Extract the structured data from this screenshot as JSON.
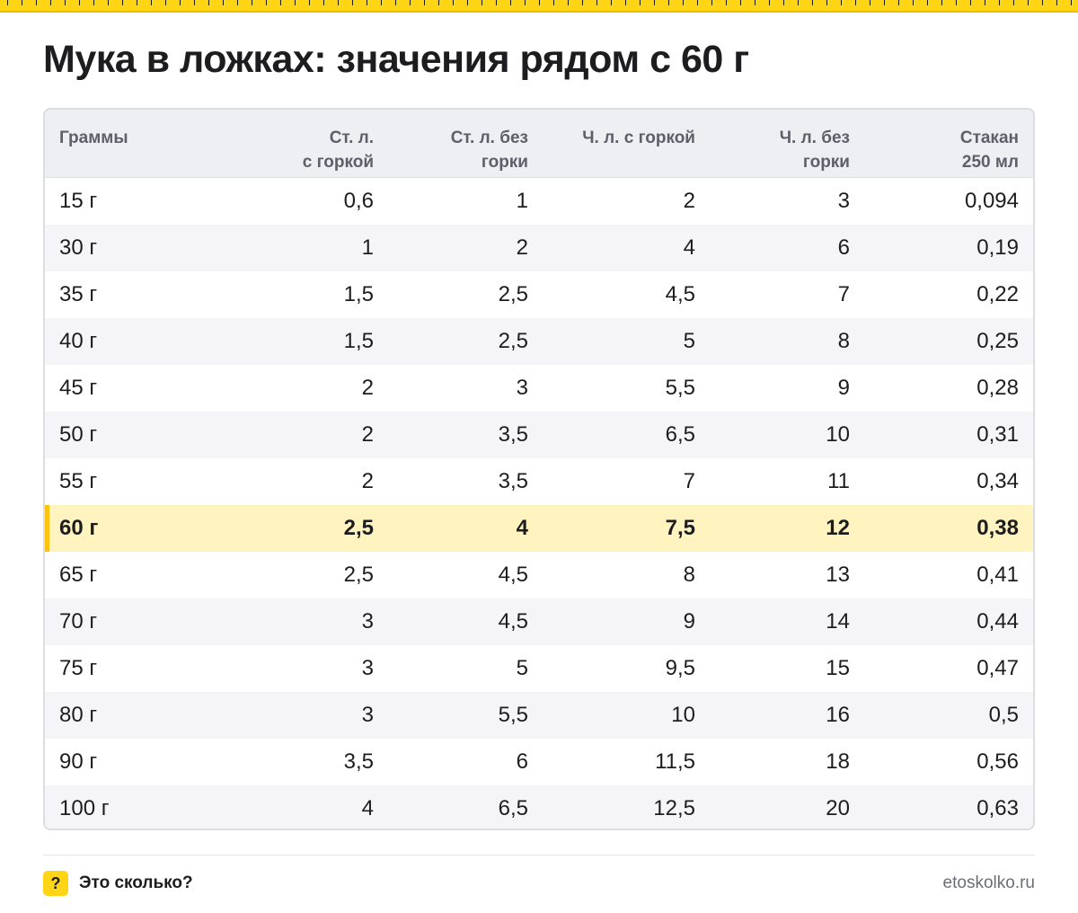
{
  "title": "Мука в ложках: значения рядом с 60 г",
  "table": {
    "headers": [
      "Граммы",
      "Ст. л.\nс горкой",
      "Ст. л. без\nгорки",
      "Ч. л. с горкой",
      "Ч. л. без\nгорки",
      "Стакан\n250 мл"
    ],
    "rows": [
      [
        "15 г",
        "0,6",
        "1",
        "2",
        "3",
        "0,094"
      ],
      [
        "30 г",
        "1",
        "2",
        "4",
        "6",
        "0,19"
      ],
      [
        "35 г",
        "1,5",
        "2,5",
        "4,5",
        "7",
        "0,22"
      ],
      [
        "40 г",
        "1,5",
        "2,5",
        "5",
        "8",
        "0,25"
      ],
      [
        "45 г",
        "2",
        "3",
        "5,5",
        "9",
        "0,28"
      ],
      [
        "50 г",
        "2",
        "3,5",
        "6,5",
        "10",
        "0,31"
      ],
      [
        "55 г",
        "2",
        "3,5",
        "7",
        "11",
        "0,34"
      ],
      [
        "60 г",
        "2,5",
        "4",
        "7,5",
        "12",
        "0,38"
      ],
      [
        "65 г",
        "2,5",
        "4,5",
        "8",
        "13",
        "0,41"
      ],
      [
        "70 г",
        "3",
        "4,5",
        "9",
        "14",
        "0,44"
      ],
      [
        "75 г",
        "3",
        "5",
        "9,5",
        "15",
        "0,47"
      ],
      [
        "80 г",
        "3",
        "5,5",
        "10",
        "16",
        "0,5"
      ],
      [
        "90 г",
        "3,5",
        "6",
        "11,5",
        "18",
        "0,56"
      ],
      [
        "100 г",
        "4",
        "6,5",
        "12,5",
        "20",
        "0,63"
      ]
    ],
    "highlighted_row": 7
  },
  "footer": {
    "logo_glyph": "?",
    "brand": "Это сколько?",
    "url": "etoskolko.ru"
  },
  "colors": {
    "accent": "#ffd515",
    "highlight_row": "#fff3bf",
    "header_bg": "#eeeff2",
    "zebra": "#f5f5f7"
  }
}
